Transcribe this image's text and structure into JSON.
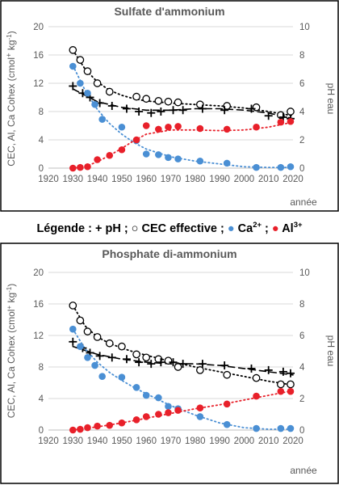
{
  "legend": {
    "prefix": "Légende : ",
    "ph": "+ pH",
    "sep1": " ; ",
    "cec": "○ CEC effective",
    "sep2": " ; ",
    "ca_base": "Ca",
    "ca_sup": "2+",
    "sep3": " ; ",
    "al_base": "Al",
    "al_sup": "3+",
    "ca_color": "#4a8fd4",
    "al_color": "#e8202a"
  },
  "chart_data": [
    {
      "type": "scatter",
      "title": "Sulfate d'ammonium",
      "xlabel": "année",
      "ylabel_base": "CEC, Al, Ca Cohex (cmol",
      "ylabel_sup": "+",
      "ylabel_end": " kg",
      "ylabel_sup2": "-1",
      "ylabel_close": ")",
      "y2label": "pH eau",
      "xlim": [
        1920,
        2020
      ],
      "ylim": [
        0,
        20
      ],
      "y2lim": [
        0,
        10
      ],
      "xticks": [
        1920,
        1930,
        1940,
        1950,
        1960,
        1970,
        1980,
        1990,
        2000,
        2010,
        2020
      ],
      "yticks": [
        0,
        4,
        8,
        12,
        16,
        20
      ],
      "y2ticks": [
        0,
        2,
        4,
        6,
        8,
        10
      ],
      "gridlines": "horizontal",
      "series": [
        {
          "key": "cec",
          "marker": "open-circle",
          "axis": "left",
          "color": "#000000",
          "x": [
            1930,
            1933,
            1936,
            1940,
            1945,
            1956,
            1960,
            1965,
            1969,
            1973,
            1982,
            1993,
            2005,
            2015,
            2019
          ],
          "y": [
            16.7,
            15.3,
            13.7,
            12.0,
            10.8,
            10.1,
            9.8,
            9.5,
            9.4,
            9.3,
            9.0,
            8.8,
            8.6,
            7.5,
            8.0
          ],
          "trend_x": [
            1930,
            1935,
            1940,
            1945,
            1950,
            1955,
            1960,
            1970,
            1980,
            1990,
            2000,
            2010,
            2020
          ],
          "trend_y": [
            16.7,
            14.0,
            12.2,
            11.0,
            10.3,
            9.8,
            9.5,
            9.2,
            9.0,
            8.8,
            8.5,
            8.0,
            7.4
          ]
        },
        {
          "key": "ph",
          "marker": "plus",
          "axis": "right",
          "color": "#000000",
          "x": [
            1930,
            1934,
            1937,
            1941,
            1946,
            1952,
            1957,
            1962,
            1966,
            1971,
            1975,
            1983,
            1992,
            2003,
            2010,
            2016,
            2019
          ],
          "y": [
            5.8,
            5.3,
            5.0,
            4.6,
            4.4,
            4.2,
            4.0,
            3.9,
            4.0,
            4.1,
            4.1,
            4.2,
            4.1,
            4.2,
            3.7,
            3.6,
            3.5
          ],
          "trend_x": [
            1930,
            1940,
            1950,
            1960,
            1970,
            1980,
            1990,
            2000,
            2010,
            2020
          ],
          "trend_y": [
            5.6,
            4.7,
            4.3,
            4.1,
            4.1,
            4.2,
            4.2,
            4.1,
            3.9,
            3.5
          ]
        },
        {
          "key": "ca",
          "marker": "filled-circle",
          "axis": "left",
          "color": "#4a8fd4",
          "x": [
            1930,
            1933,
            1936,
            1939,
            1942,
            1950,
            1956,
            1960,
            1965,
            1969,
            1973,
            1982,
            1993,
            2005,
            2015,
            2019
          ],
          "y": [
            14.4,
            12.0,
            10.6,
            9.0,
            6.9,
            5.8,
            3.9,
            2.0,
            1.9,
            1.5,
            1.3,
            1.0,
            0.7,
            0.1,
            0.1,
            0.2
          ],
          "trend_x": [
            1930,
            1935,
            1940,
            1945,
            1950,
            1955,
            1960,
            1970,
            1980,
            1990,
            2000,
            2010,
            2020
          ],
          "trend_y": [
            14.5,
            11.0,
            8.3,
            6.3,
            4.8,
            3.6,
            2.7,
            1.6,
            1.0,
            0.6,
            0.2,
            0.1,
            0.1
          ]
        },
        {
          "key": "al",
          "marker": "filled-circle",
          "axis": "left",
          "color": "#e8202a",
          "x": [
            1930,
            1933,
            1936,
            1940,
            1945,
            1950,
            1956,
            1960,
            1965,
            1969,
            1973,
            1982,
            1993,
            2005,
            2015,
            2019
          ],
          "y": [
            0.0,
            0.1,
            0.2,
            1.2,
            1.8,
            2.6,
            4.0,
            6.0,
            5.5,
            5.8,
            5.9,
            5.6,
            5.5,
            5.8,
            6.5,
            6.6
          ],
          "trend_x": [
            1930,
            1935,
            1940,
            1945,
            1950,
            1955,
            1960,
            1970,
            1980,
            1990,
            2000,
            2010,
            2020
          ],
          "trend_y": [
            0.0,
            0.2,
            0.9,
            1.8,
            2.8,
            3.9,
            4.8,
            5.4,
            5.4,
            5.3,
            5.4,
            5.8,
            6.5
          ]
        }
      ]
    },
    {
      "type": "scatter",
      "title": "Phosphate di-ammonium",
      "xlabel": "année",
      "ylabel_base": "CEC, Al, Ca Cohex (cmol",
      "ylabel_sup": "+",
      "ylabel_end": " kg",
      "ylabel_sup2": "-1",
      "ylabel_close": ")",
      "y2label": "pH eau",
      "xlim": [
        1920,
        2020
      ],
      "ylim": [
        0,
        20
      ],
      "y2lim": [
        0,
        10
      ],
      "xticks": [
        1920,
        1930,
        1940,
        1950,
        1960,
        1970,
        1980,
        1990,
        2000,
        2010,
        2020
      ],
      "yticks": [
        0,
        4,
        8,
        12,
        16,
        20
      ],
      "y2ticks": [
        0,
        2,
        4,
        6,
        8,
        10
      ],
      "gridlines": "horizontal",
      "series": [
        {
          "key": "cec",
          "marker": "open-circle",
          "axis": "left",
          "color": "#000000",
          "x": [
            1930,
            1933,
            1936,
            1940,
            1945,
            1950,
            1956,
            1960,
            1965,
            1969,
            1973,
            1982,
            1993,
            2005,
            2015,
            2019
          ],
          "y": [
            15.8,
            13.9,
            12.5,
            11.8,
            11.0,
            10.6,
            9.6,
            9.2,
            9.0,
            8.8,
            8.0,
            7.6,
            7.0,
            6.6,
            5.8,
            5.8
          ],
          "trend_x": [
            1930,
            1935,
            1940,
            1945,
            1950,
            1955,
            1960,
            1970,
            1980,
            1990,
            2000,
            2010,
            2020
          ],
          "trend_y": [
            15.8,
            13.2,
            11.8,
            11.0,
            10.4,
            9.9,
            9.5,
            8.7,
            8.0,
            7.4,
            6.8,
            6.2,
            5.7
          ]
        },
        {
          "key": "ph",
          "marker": "plus",
          "axis": "right",
          "color": "#000000",
          "x": [
            1930,
            1934,
            1937,
            1941,
            1946,
            1952,
            1957,
            1962,
            1966,
            1971,
            1975,
            1983,
            1992,
            2003,
            2010,
            2016,
            2019
          ],
          "y": [
            5.6,
            5.2,
            4.9,
            4.7,
            4.6,
            4.5,
            4.3,
            4.2,
            4.3,
            4.3,
            4.2,
            4.2,
            4.1,
            3.9,
            3.8,
            3.7,
            3.6
          ],
          "trend_x": [
            1930,
            1940,
            1950,
            1960,
            1970,
            1980,
            1990,
            2000,
            2010,
            2020
          ],
          "trend_y": [
            5.3,
            4.8,
            4.5,
            4.3,
            4.2,
            4.2,
            4.1,
            3.9,
            3.7,
            3.5
          ]
        },
        {
          "key": "ca",
          "marker": "filled-circle",
          "axis": "left",
          "color": "#4a8fd4",
          "x": [
            1930,
            1933,
            1936,
            1939,
            1942,
            1950,
            1956,
            1960,
            1965,
            1969,
            1973,
            1982,
            1993,
            2005,
            2015,
            2019
          ],
          "y": [
            12.8,
            10.6,
            9.2,
            8.2,
            6.8,
            6.7,
            5.4,
            4.4,
            4.1,
            3.0,
            2.7,
            1.7,
            0.7,
            0.2,
            0.2,
            0.2
          ],
          "trend_x": [
            1930,
            1935,
            1940,
            1945,
            1950,
            1955,
            1960,
            1970,
            1980,
            1990,
            2000,
            2010,
            2020
          ],
          "trend_y": [
            12.8,
            10.3,
            8.6,
            7.3,
            6.3,
            5.4,
            4.6,
            3.1,
            1.9,
            0.9,
            0.3,
            0.1,
            0.1
          ]
        },
        {
          "key": "al",
          "marker": "filled-circle",
          "axis": "left",
          "color": "#e8202a",
          "x": [
            1930,
            1933,
            1936,
            1940,
            1945,
            1950,
            1956,
            1960,
            1965,
            1969,
            1973,
            1982,
            1993,
            2005,
            2015,
            2019
          ],
          "y": [
            0.0,
            0.1,
            0.3,
            0.5,
            0.6,
            0.9,
            1.3,
            1.7,
            2.0,
            2.2,
            2.5,
            2.8,
            3.3,
            4.3,
            4.9,
            4.9
          ],
          "trend_x": [
            1930,
            1940,
            1950,
            1960,
            1970,
            1980,
            1990,
            2000,
            2010,
            2020
          ],
          "trend_y": [
            0.0,
            0.4,
            0.9,
            1.5,
            2.1,
            2.7,
            3.2,
            3.8,
            4.4,
            5.0
          ]
        }
      ]
    }
  ]
}
